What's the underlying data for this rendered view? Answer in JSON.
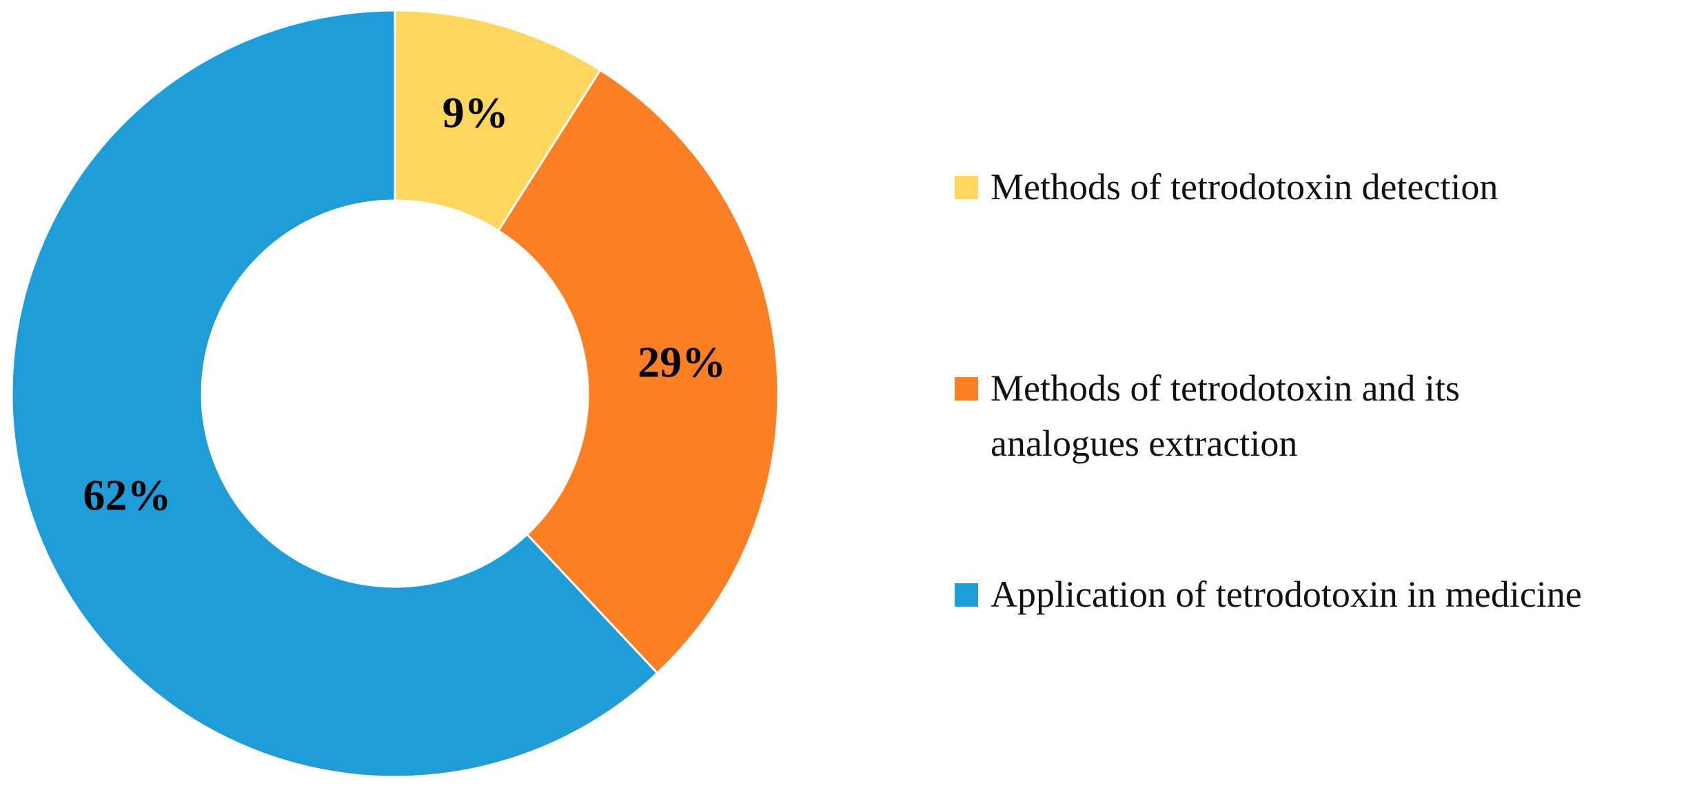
{
  "chart_data": {
    "type": "donut",
    "categories": [
      "Methods of tetrodotoxin detection",
      "Methods of tetrodotoxin and its analogues extraction",
      "Application of tetrodotoxin in medicine"
    ],
    "values": [
      9,
      29,
      62
    ],
    "value_labels": [
      "9%",
      "29%",
      "62%"
    ],
    "colors": [
      "#ffd75e",
      "#fd7f24",
      "#1f9dd9"
    ],
    "legend": "right"
  }
}
